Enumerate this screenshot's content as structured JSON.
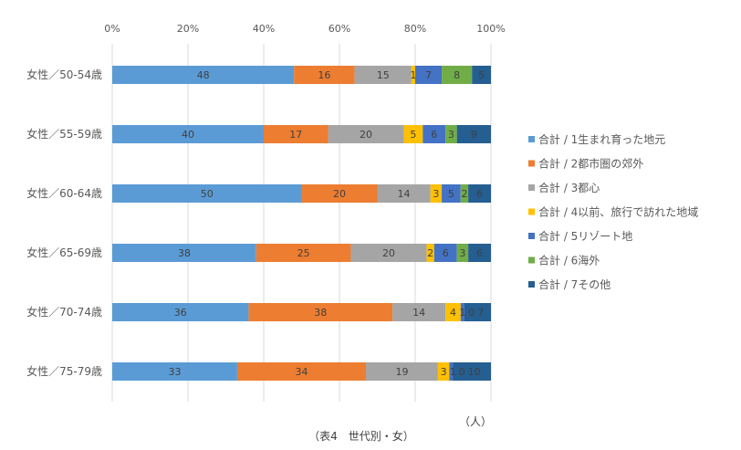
{
  "chart_data": {
    "type": "bar",
    "stacked": true,
    "orientation": "horizontal",
    "title": "（表4　世代別・女）",
    "unit_label": "（人）",
    "xlim": [
      0,
      100
    ],
    "x_ticks": [
      "0%",
      "20%",
      "40%",
      "60%",
      "80%",
      "100%"
    ],
    "grid": true,
    "legend_position": "right",
    "categories": [
      "女性／50-54歳",
      "女性／55-59歳",
      "女性／60-64歳",
      "女性／65-69歳",
      "女性／70-74歳",
      "女性／75-79歳"
    ],
    "series": [
      {
        "name": "合計 / 1生まれ育った地元",
        "color": "#5b9bd5",
        "values": [
          48,
          40,
          50,
          38,
          36,
          33
        ]
      },
      {
        "name": "合計 / 2都市圏の郊外",
        "color": "#ed7d31",
        "values": [
          16,
          17,
          20,
          25,
          38,
          34
        ]
      },
      {
        "name": "合計 / 3都心",
        "color": "#a5a5a5",
        "values": [
          15,
          20,
          14,
          20,
          14,
          19
        ]
      },
      {
        "name": "合計 / 4以前、旅行で訪れた地域",
        "color": "#ffc000",
        "values": [
          1,
          5,
          3,
          2,
          4,
          3
        ]
      },
      {
        "name": "合計 / 5リゾート地",
        "color": "#4472c4",
        "values": [
          7,
          6,
          5,
          6,
          1,
          1
        ]
      },
      {
        "name": "合計 / 6海外",
        "color": "#70ad47",
        "values": [
          8,
          3,
          2,
          3,
          0,
          0
        ]
      },
      {
        "name": "合計 / 7その他",
        "color": "#255e91",
        "values": [
          5,
          9,
          6,
          6,
          7,
          10
        ]
      }
    ]
  }
}
